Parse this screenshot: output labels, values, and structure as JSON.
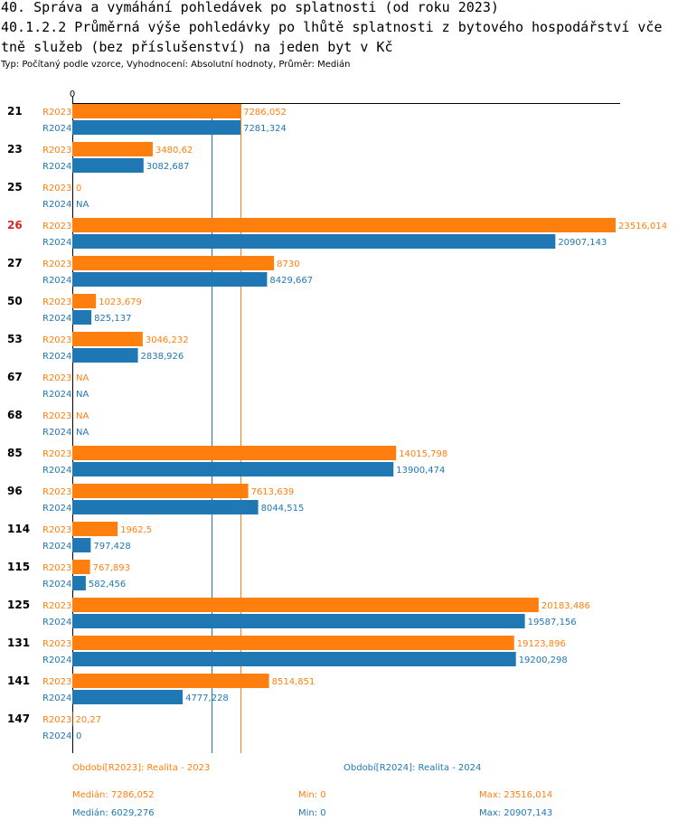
{
  "header": {
    "title_line1": "40. Správa a vymáhání pohledávek po splatnosti (od roku 2023)",
    "title_line2": "40.1.2.2 Průměrná výše pohledávky po lhůtě splatnosti z bytového hospodářství vče",
    "title_line3": "tně služeb (bez příslušenství) na jeden byt v Kč",
    "subtitle": "Typ: Počítaný podle vzorce, Vyhodnocení: Absolutní hodnoty, Průměr: Medián"
  },
  "colors": {
    "r2023": "#ff7f0e",
    "r2024": "#1f77b4",
    "highlight": "#d62728"
  },
  "chart_data": {
    "type": "bar",
    "orientation": "horizontal",
    "xlim": [
      0,
      23516.014
    ],
    "axis_zero_label": "0",
    "highlighted_category": "26",
    "categories": [
      "21",
      "23",
      "25",
      "26",
      "27",
      "50",
      "53",
      "67",
      "68",
      "85",
      "96",
      "114",
      "115",
      "125",
      "131",
      "141",
      "147"
    ],
    "series": [
      {
        "name": "R2023",
        "values": [
          7286.052,
          3480.62,
          0,
          23516.014,
          8730,
          1023.679,
          3046.232,
          null,
          null,
          14015.798,
          7613.639,
          1962.5,
          767.893,
          20183.486,
          19123.896,
          8514.851,
          20.27
        ],
        "labels": [
          "7286,052",
          "3480,62",
          "0",
          "23516,014",
          "8730",
          "1023,679",
          "3046,232",
          "NA",
          "NA",
          "14015,798",
          "7613,639",
          "1962,5",
          "767,893",
          "20183,486",
          "19123,896",
          "8514,851",
          "20,27"
        ]
      },
      {
        "name": "R2024",
        "values": [
          7281.324,
          3082.687,
          null,
          20907.143,
          8429.667,
          825.137,
          2838.926,
          null,
          null,
          13900.474,
          8044.515,
          797.428,
          582.456,
          19587.156,
          19200.298,
          4777.228,
          0
        ],
        "labels": [
          "7281,324",
          "3082,687",
          "NA",
          "20907,143",
          "8429,667",
          "825,137",
          "2838,926",
          "NA",
          "NA",
          "13900,474",
          "8044,515",
          "797,428",
          "582,456",
          "19587,156",
          "19200,298",
          "4777,228",
          "0"
        ]
      }
    ],
    "median_lines": [
      {
        "series": "R2023",
        "value": 7286.052
      },
      {
        "series": "R2024",
        "value": 6029.276
      }
    ]
  },
  "legend": {
    "r2023": "Období[R2023]: Realita - 2023",
    "r2024": "Období[R2024]: Realita - 2024"
  },
  "stats": {
    "r2023": {
      "median": "Medián: 7286,052",
      "min": "Min: 0",
      "max": "Max: 23516,014"
    },
    "r2024": {
      "median": "Medián: 6029,276",
      "min": "Min: 0",
      "max": "Max: 20907,143"
    }
  }
}
